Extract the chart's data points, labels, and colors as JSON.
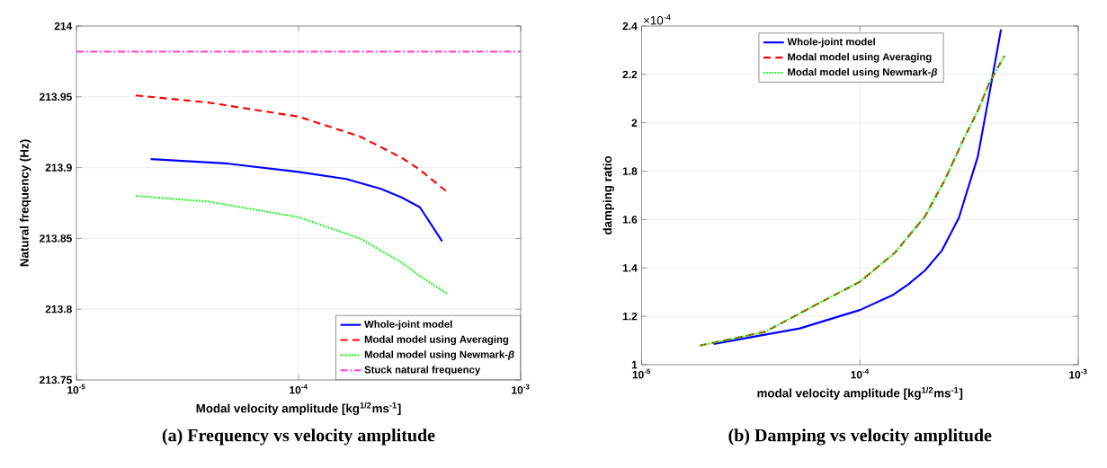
{
  "chart_data": [
    {
      "type": "line",
      "title": "(a) Frequency vs velocity amplitude",
      "xlabel": "Modal velocity amplitude [kg$^{1/2}$ms$^{-1}$]",
      "ylabel": "Natural frequency (Hz)",
      "log": "x",
      "grid": true,
      "legend": "bottom right",
      "xlim": [
        1e-05,
        0.001
      ],
      "xticks": [
        {
          "value": 1e-05,
          "label": "10$^{-5}$"
        },
        {
          "value": 0.0001,
          "label": "10$^{-4}$"
        },
        {
          "value": 0.001,
          "label": "10$^{-3}$"
        }
      ],
      "ylim": [
        213.75,
        214
      ],
      "yticks": [
        213.75,
        213.8,
        213.85,
        213.9,
        213.95,
        214
      ],
      "series": [
        {
          "name": "Whole-joint model",
          "color": "#0000ff",
          "line_style": "solid",
          "x": [
            2.16e-05,
            4.68e-05,
            0.0001,
            0.000164,
            0.000235,
            0.000291,
            0.000352,
            0.000443
          ],
          "values": [
            213.906,
            213.903,
            213.897,
            213.892,
            213.885,
            213.879,
            213.872,
            213.848
          ]
        },
        {
          "name": "Modal model using Averaging",
          "color": "#ff0000",
          "line_style": "dashed",
          "x": [
            1.85e-05,
            3.91e-05,
            0.0001,
            0.000189,
            0.000291,
            0.000348,
            0.000465
          ],
          "values": [
            213.951,
            213.946,
            213.936,
            213.922,
            213.907,
            213.899,
            213.883
          ]
        },
        {
          "name": "Modal model using Newmark-*β*",
          "color": "#00ff00",
          "line_style": "dotted",
          "x": [
            1.85e-05,
            3.91e-05,
            0.0001,
            0.000189,
            0.000291,
            0.000348,
            0.000465
          ],
          "values": [
            213.88,
            213.876,
            213.865,
            213.85,
            213.833,
            213.824,
            213.811
          ]
        },
        {
          "name": "Stuck natural frequency",
          "color": "#ff44cc",
          "line_style": "dashdot",
          "x": [
            1e-05,
            0.001
          ],
          "values": [
            213.982,
            213.982
          ]
        }
      ]
    },
    {
      "type": "line",
      "title": "(b) Damping vs velocity amplitude",
      "xlabel": "modal velocity amplitude [kg$^{1/2}$ms$^{-1}$]",
      "ylabel": "damping ratio",
      "annotations": [
        "×10$^{-4}$"
      ],
      "log": "x",
      "grid": true,
      "legend": "top",
      "xlim": [
        1e-05,
        0.001
      ],
      "xticks": [
        {
          "value": 1e-05,
          "label": "10$^{-5}$"
        },
        {
          "value": 0.0001,
          "label": "10$^{-4}$"
        },
        {
          "value": 0.001,
          "label": "10$^{-3}$"
        }
      ],
      "ylim": [
        1,
        2.4
      ],
      "yticks": [
        1,
        1.2,
        1.4,
        1.6,
        1.8,
        2,
        2.2,
        2.4
      ],
      "series": [
        {
          "name": "Whole-joint model",
          "color": "#0000ff",
          "line_style": "solid",
          "x": [
            2.14e-05,
            5.3e-05,
            0.0001,
            0.000142,
            0.000167,
            0.000199,
            0.000237,
            0.000284,
            0.000347,
            0.000387,
            0.000443
          ],
          "values": [
            1.086,
            1.15,
            1.226,
            1.289,
            1.333,
            1.39,
            1.471,
            1.607,
            1.861,
            2.093,
            2.386
          ]
        },
        {
          "name": "Modal model using Averaging",
          "color": "#ff0000",
          "line_style": "dashed",
          "x": [
            1.85e-05,
            3.68e-05,
            6.36e-05,
            0.0001,
            0.000145,
            0.000199,
            0.000245,
            0.0003,
            0.000347,
            0.000394,
            0.000459
          ],
          "values": [
            1.079,
            1.136,
            1.25,
            1.343,
            1.464,
            1.614,
            1.764,
            1.936,
            2.05,
            2.171,
            2.276
          ]
        },
        {
          "name": "Modal model using Newmark-*β*",
          "color": "#00ff00",
          "line_style": "dotted",
          "x": [
            1.85e-05,
            3.68e-05,
            6.36e-05,
            0.0001,
            0.000145,
            0.000199,
            0.000245,
            0.0003,
            0.000347,
            0.000394,
            0.000459
          ],
          "values": [
            1.079,
            1.136,
            1.25,
            1.343,
            1.464,
            1.614,
            1.764,
            1.936,
            2.05,
            2.171,
            2.276
          ]
        }
      ]
    }
  ]
}
